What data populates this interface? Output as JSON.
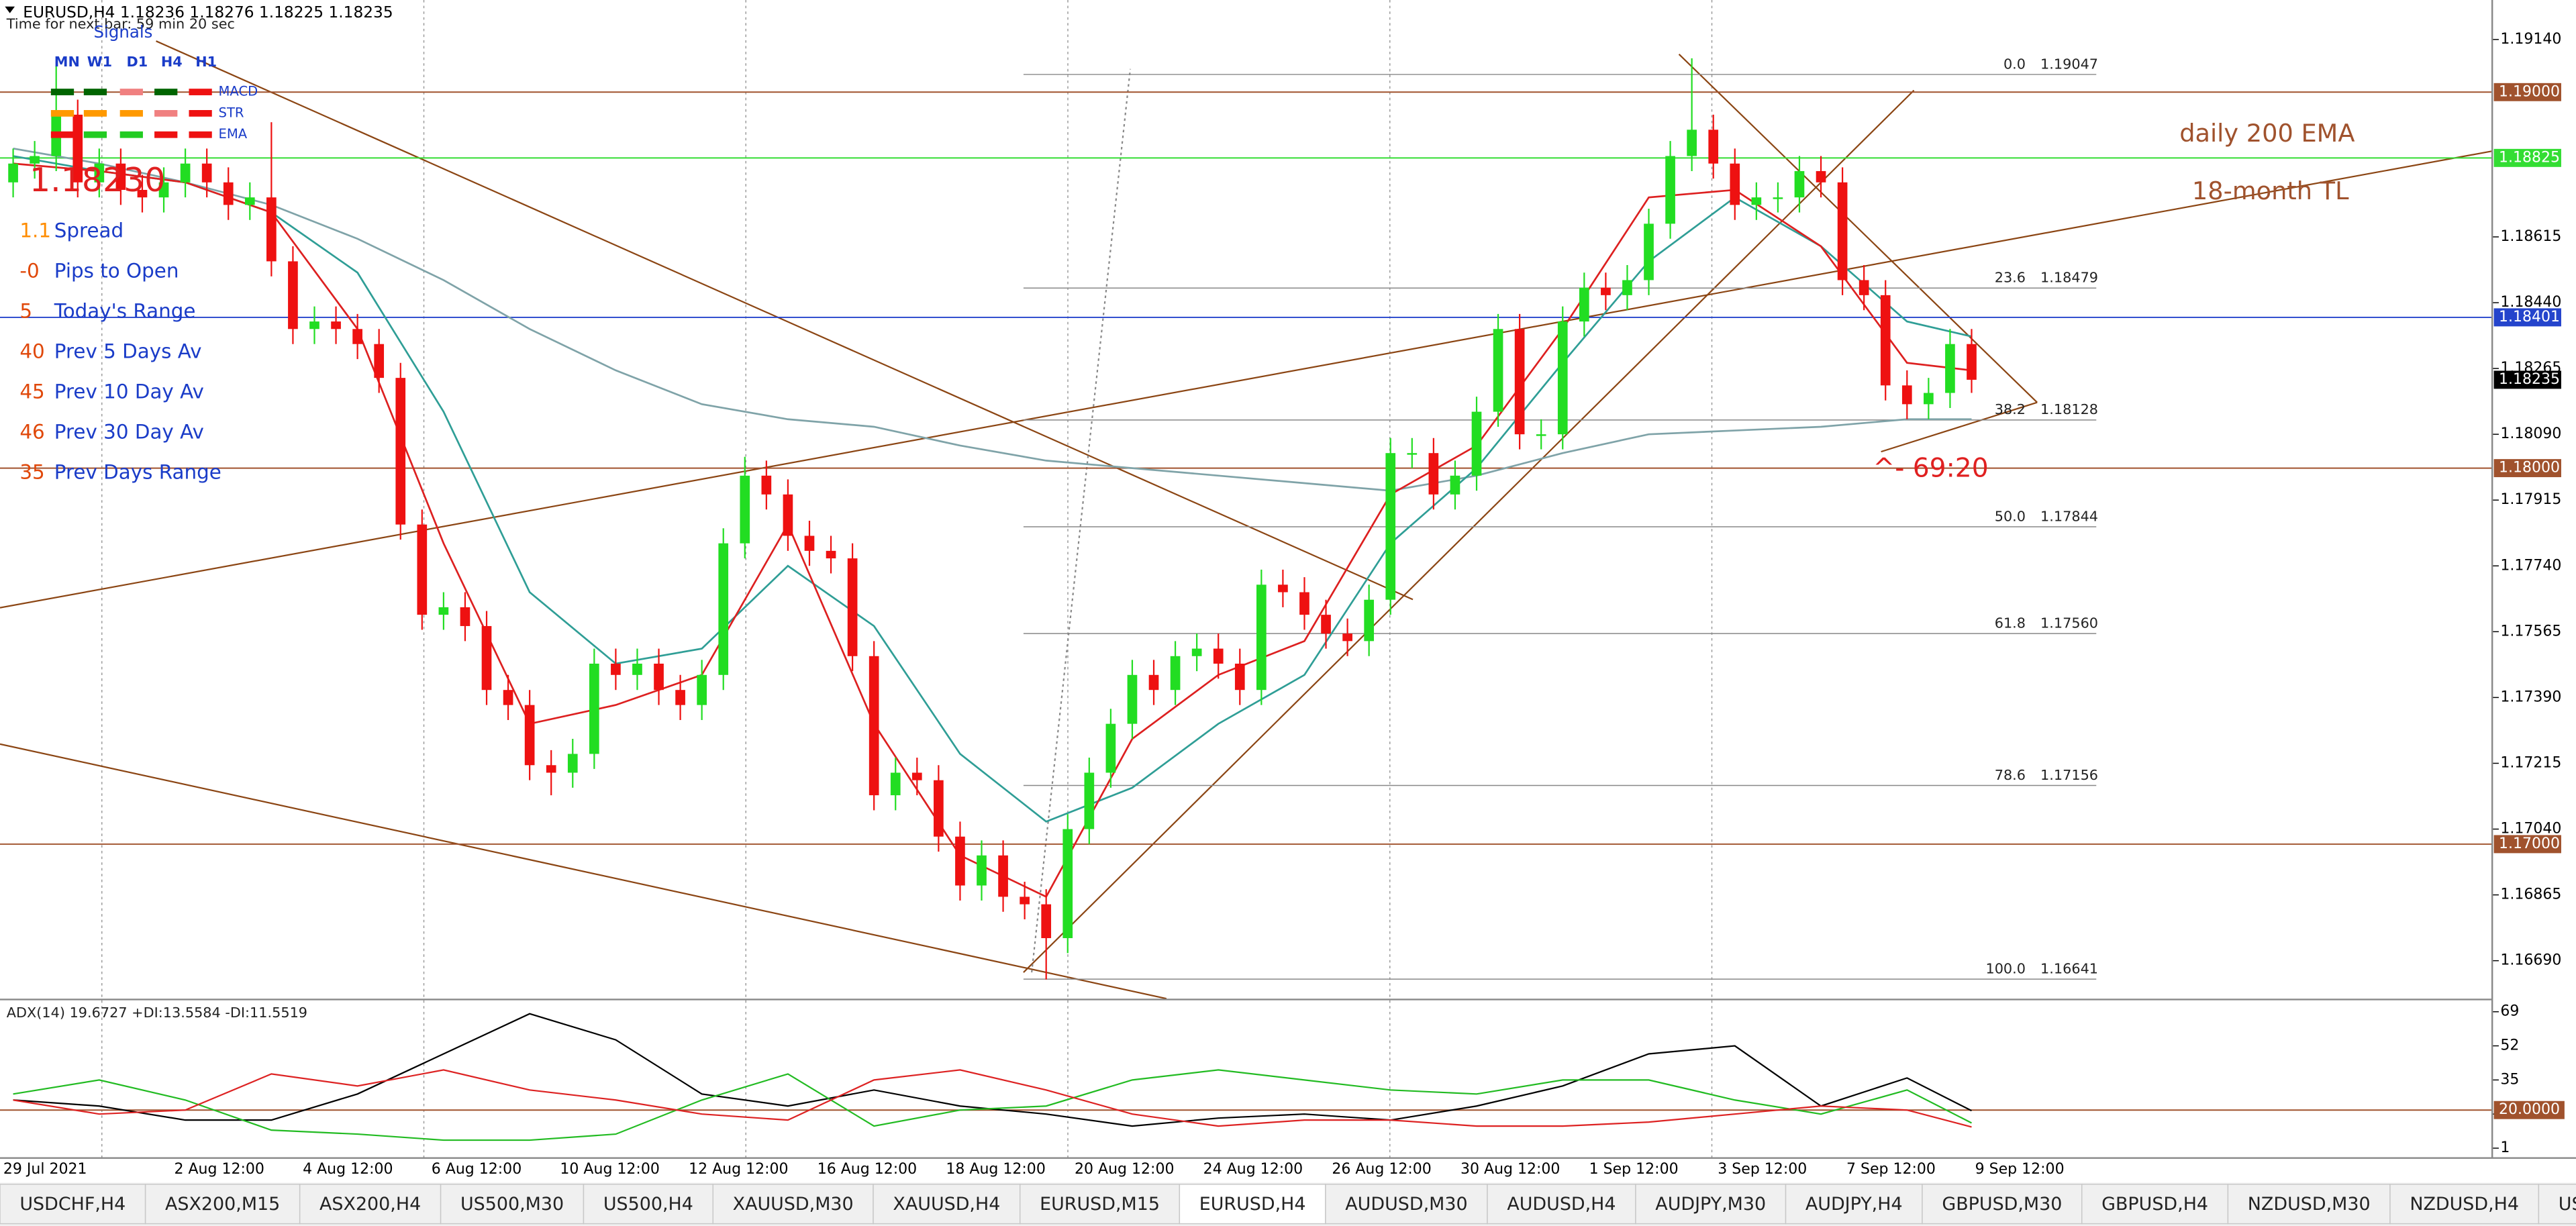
{
  "header": {
    "symbol_line": "EURUSD,H4  1.18236 1.18276 1.18225 1.18235",
    "timer": "Time for next bar: 59 min 20 sec"
  },
  "signals": {
    "title": "Signals",
    "timeframes": [
      "MN",
      "W1",
      "D1",
      "H4",
      "H1"
    ],
    "rows": [
      "MACD",
      "STR",
      "EMA"
    ]
  },
  "info_panel": {
    "price": "1.18230",
    "rows": [
      {
        "value": "1.1",
        "label": "Spread"
      },
      {
        "value": "-0",
        "label": "Pips to Open"
      },
      {
        "value": "5",
        "label": "Today's Range"
      },
      {
        "value": "40",
        "label": "Prev 5 Days Av"
      },
      {
        "value": "45",
        "label": "Prev 10 Day Av"
      },
      {
        "value": "46",
        "label": "Prev 30 Day Av"
      },
      {
        "value": "35",
        "label": "Prev Days Range"
      }
    ]
  },
  "chart_data": [
    {
      "type": "candlestick",
      "title": "EURUSD,H4",
      "up_color": "#22dd22",
      "down_color": "#ee1111",
      "open": [
        1.1876,
        1.1881,
        1.1883,
        1.1894,
        1.1876,
        1.1881,
        1.1874,
        1.1872,
        1.1876,
        1.1881,
        1.1876,
        1.187,
        1.1872,
        1.1855,
        1.1837,
        1.1839,
        1.1837,
        1.1833,
        1.1824,
        1.1785,
        1.1761,
        1.1763,
        1.1758,
        1.1741,
        1.1737,
        1.1721,
        1.1719,
        1.1724,
        1.1748,
        1.1745,
        1.1748,
        1.1741,
        1.1737,
        1.1745,
        1.178,
        1.1798,
        1.1793,
        1.1782,
        1.1778,
        1.1776,
        1.175,
        1.1713,
        1.1719,
        1.1717,
        1.1702,
        1.1689,
        1.1697,
        1.1686,
        1.1684,
        1.1675,
        1.1704,
        1.1719,
        1.1732,
        1.1745,
        1.1741,
        1.175,
        1.1752,
        1.1748,
        1.1741,
        1.1769,
        1.1767,
        1.1761,
        1.1756,
        1.1754,
        1.1765,
        1.1804,
        1.1804,
        1.1793,
        1.1798,
        1.1815,
        1.1837,
        1.1809,
        1.1809,
        1.1839,
        1.1848,
        1.1846,
        1.185,
        1.1865,
        1.1883,
        1.189,
        1.1881,
        1.187,
        1.1872,
        1.1872,
        1.1879,
        1.1876,
        1.185,
        1.1846,
        1.1822,
        1.1817,
        1.182,
        1.1833
      ],
      "high": [
        1.1885,
        1.1887,
        1.1907,
        1.1898,
        1.1885,
        1.1885,
        1.1878,
        1.188,
        1.1885,
        1.1885,
        1.188,
        1.1876,
        1.1892,
        1.1859,
        1.1843,
        1.1843,
        1.1841,
        1.1837,
        1.1828,
        1.1789,
        1.1767,
        1.1767,
        1.1762,
        1.1745,
        1.1741,
        1.1725,
        1.1728,
        1.1752,
        1.1752,
        1.1752,
        1.1752,
        1.1745,
        1.1749,
        1.1784,
        1.1803,
        1.1802,
        1.1797,
        1.1786,
        1.1782,
        1.178,
        1.1754,
        1.1723,
        1.1723,
        1.1721,
        1.1706,
        1.1701,
        1.1701,
        1.169,
        1.1688,
        1.1708,
        1.1723,
        1.1736,
        1.1749,
        1.1749,
        1.1754,
        1.1756,
        1.1756,
        1.1752,
        1.1773,
        1.1773,
        1.1771,
        1.1765,
        1.176,
        1.1769,
        1.1808,
        1.1808,
        1.1808,
        1.1802,
        1.1819,
        1.1841,
        1.1841,
        1.1813,
        1.1843,
        1.1852,
        1.1852,
        1.1854,
        1.1869,
        1.1887,
        1.1909,
        1.1894,
        1.1885,
        1.1876,
        1.1876,
        1.1883,
        1.1883,
        1.188,
        1.1854,
        1.185,
        1.1826,
        1.1824,
        1.1837,
        1.1837
      ],
      "low": [
        1.1872,
        1.1877,
        1.1879,
        1.1872,
        1.1872,
        1.187,
        1.1868,
        1.1868,
        1.1872,
        1.1872,
        1.1866,
        1.1866,
        1.1851,
        1.1833,
        1.1833,
        1.1833,
        1.1829,
        1.182,
        1.1781,
        1.1757,
        1.1757,
        1.1754,
        1.1737,
        1.1733,
        1.1717,
        1.1713,
        1.1715,
        1.172,
        1.1741,
        1.1741,
        1.1737,
        1.1733,
        1.1733,
        1.1741,
        1.1776,
        1.1789,
        1.1778,
        1.1774,
        1.1772,
        1.1746,
        1.1709,
        1.1709,
        1.1713,
        1.1698,
        1.1685,
        1.1685,
        1.1682,
        1.168,
        1.1664,
        1.1671,
        1.17,
        1.1715,
        1.1728,
        1.1737,
        1.1737,
        1.1746,
        1.1744,
        1.1737,
        1.1737,
        1.1763,
        1.1757,
        1.1752,
        1.175,
        1.175,
        1.1761,
        1.18,
        1.1789,
        1.1789,
        1.1794,
        1.1811,
        1.1805,
        1.1805,
        1.1805,
        1.1835,
        1.1842,
        1.1842,
        1.1846,
        1.1861,
        1.1879,
        1.1877,
        1.1866,
        1.1866,
        1.1868,
        1.1868,
        1.1872,
        1.1846,
        1.1842,
        1.1818,
        1.1813,
        1.1813,
        1.1816,
        1.182
      ],
      "close": [
        1.1881,
        1.1883,
        1.1894,
        1.1876,
        1.1881,
        1.1874,
        1.1872,
        1.1876,
        1.1881,
        1.1876,
        1.187,
        1.1872,
        1.1855,
        1.1837,
        1.1839,
        1.1837,
        1.1833,
        1.1824,
        1.1785,
        1.1761,
        1.1763,
        1.1758,
        1.1741,
        1.1737,
        1.1721,
        1.1719,
        1.1724,
        1.1748,
        1.1745,
        1.1748,
        1.1741,
        1.1737,
        1.1745,
        1.178,
        1.1798,
        1.1793,
        1.1782,
        1.1778,
        1.1776,
        1.175,
        1.1713,
        1.1719,
        1.1717,
        1.1702,
        1.1689,
        1.1697,
        1.1686,
        1.1684,
        1.1675,
        1.1704,
        1.1719,
        1.1732,
        1.1745,
        1.1741,
        1.175,
        1.1752,
        1.1748,
        1.1741,
        1.1769,
        1.1767,
        1.1761,
        1.1756,
        1.1754,
        1.1765,
        1.1804,
        1.1804,
        1.1793,
        1.1798,
        1.1815,
        1.1837,
        1.1809,
        1.1809,
        1.1839,
        1.1848,
        1.1846,
        1.185,
        1.1865,
        1.1883,
        1.189,
        1.1881,
        1.187,
        1.1872,
        1.1872,
        1.1879,
        1.1876,
        1.185,
        1.1846,
        1.1822,
        1.1817,
        1.182,
        1.1833,
        1.18235
      ],
      "ma_lines": [
        {
          "color": "#7fa3a8",
          "x": [
            0,
            4,
            8,
            12,
            16,
            20,
            24,
            28,
            32,
            36,
            40,
            44,
            48,
            52,
            56,
            60,
            64,
            68,
            72,
            76,
            80,
            84,
            88,
            91
          ],
          "values": [
            1.1885,
            1.1881,
            1.1876,
            1.187,
            1.1861,
            1.185,
            1.1837,
            1.1826,
            1.1817,
            1.1813,
            1.1811,
            1.1806,
            1.1802,
            1.18,
            1.1798,
            1.1796,
            1.1794,
            1.1798,
            1.1804,
            1.1809,
            1.181,
            1.1811,
            1.1813,
            1.1813
          ]
        },
        {
          "color": "#2f9e96",
          "x": [
            0,
            4,
            8,
            12,
            16,
            20,
            24,
            28,
            32,
            36,
            40,
            44,
            48,
            52,
            56,
            60,
            64,
            68,
            72,
            76,
            80,
            84,
            88,
            91
          ],
          "values": [
            1.1883,
            1.1879,
            1.1876,
            1.1868,
            1.1852,
            1.1815,
            1.1767,
            1.1748,
            1.1752,
            1.1774,
            1.1758,
            1.1724,
            1.1706,
            1.1715,
            1.1732,
            1.1745,
            1.178,
            1.18,
            1.1828,
            1.1855,
            1.1872,
            1.1859,
            1.1839,
            1.1835
          ]
        },
        {
          "color": "#dd2020",
          "x": [
            0,
            4,
            8,
            12,
            16,
            20,
            24,
            28,
            32,
            36,
            40,
            44,
            48,
            52,
            56,
            60,
            64,
            68,
            72,
            76,
            80,
            84,
            88,
            91
          ],
          "values": [
            1.1881,
            1.1879,
            1.1876,
            1.1868,
            1.1837,
            1.178,
            1.1732,
            1.1737,
            1.1745,
            1.1785,
            1.1732,
            1.1697,
            1.1686,
            1.1728,
            1.1745,
            1.1754,
            1.1793,
            1.1806,
            1.1837,
            1.1872,
            1.1874,
            1.1859,
            1.1828,
            1.1826
          ]
        }
      ],
      "ylim": [
        1.16589,
        1.19245
      ],
      "yticks": [
        {
          "value": 1.1914,
          "label": "1.19140"
        },
        {
          "value": 1.18615,
          "label": "1.18615"
        },
        {
          "value": 1.1844,
          "label": "1.18440"
        },
        {
          "value": 1.18265,
          "label": "1.18265"
        },
        {
          "value": 1.1809,
          "label": "1.18090"
        },
        {
          "value": 1.17915,
          "label": "1.17915"
        },
        {
          "value": 1.1774,
          "label": "1.17740"
        },
        {
          "value": 1.17565,
          "label": "1.17565"
        },
        {
          "value": 1.1739,
          "label": "1.17390"
        },
        {
          "value": 1.17215,
          "label": "1.17215"
        },
        {
          "value": 1.1704,
          "label": "1.17040"
        },
        {
          "value": 1.16865,
          "label": "1.16865"
        },
        {
          "value": 1.1669,
          "label": "1.16690"
        }
      ],
      "price_lines": [
        {
          "value": 1.19,
          "label": "1.19000",
          "color": "#a0522d",
          "show_line": true
        },
        {
          "value": 1.18825,
          "label": "1.18825",
          "color": "#33dd33",
          "show_line": true
        },
        {
          "value": 1.18401,
          "label": "1.18401",
          "color": "#2444cc",
          "show_line": true
        },
        {
          "value": 1.18235,
          "label": "1.18235",
          "color": "#000000",
          "show_line": false
        },
        {
          "value": 1.18,
          "label": "1.18000",
          "color": "#a0522d",
          "show_line": true
        },
        {
          "value": 1.17,
          "label": "1.17000",
          "color": "#a0522d",
          "show_line": true
        }
      ],
      "fib_color": "#888888",
      "fib_levels": [
        {
          "level": "0.0",
          "price": 1.19047
        },
        {
          "level": "23.6",
          "price": 1.18479
        },
        {
          "level": "38.2",
          "price": 1.18128
        },
        {
          "level": "50.0",
          "price": 1.17844
        },
        {
          "level": "61.8",
          "price": {
            "value": 1.1756,
            "label": "1.17560"
          }
        },
        {
          "level": "78.6",
          "price": 1.17156
        },
        {
          "level": "100.0",
          "price": 1.16641
        }
      ],
      "annotations": [
        "daily 200 EMA",
        "18-month TL",
        "^- 69:20"
      ],
      "x_labels": [
        "29 Jul 2021",
        "2 Aug 12:00",
        "4 Aug 12:00",
        "6 Aug 12:00",
        "10 Aug 12:00",
        "12 Aug 12:00",
        "16 Aug 12:00",
        "18 Aug 12:00",
        "20 Aug 12:00",
        "24 Aug 12:00",
        "26 Aug 12:00",
        "30 Aug 12:00",
        "1 Sep 12:00",
        "3 Sep 12:00",
        "7 Sep 12:00",
        "9 Sep 12:00"
      ]
    },
    {
      "type": "line",
      "title": "ADX(14) 19.6727 +DI:13.5584 -DI:11.5519",
      "x": [
        0,
        4,
        8,
        12,
        16,
        20,
        24,
        28,
        32,
        36,
        40,
        44,
        48,
        52,
        56,
        60,
        64,
        68,
        72,
        76,
        80,
        84,
        88,
        91
      ],
      "series": [
        {
          "color": "#000000",
          "values": [
            25,
            22,
            15,
            15,
            28,
            48,
            68,
            55,
            28,
            22,
            30,
            22,
            18,
            12,
            16,
            18,
            15,
            22,
            32,
            48,
            52,
            22,
            36,
            19.6727
          ]
        },
        {
          "color": "#22bb22",
          "values": [
            28,
            35,
            25,
            10,
            8,
            5,
            5,
            8,
            25,
            38,
            12,
            20,
            22,
            35,
            40,
            35,
            30,
            28,
            35,
            35,
            25,
            18,
            30,
            13.5584
          ]
        },
        {
          "color": "#dd2222",
          "values": [
            25,
            18,
            20,
            38,
            32,
            40,
            30,
            25,
            18,
            15,
            35,
            40,
            30,
            18,
            12,
            15,
            15,
            12,
            12,
            14,
            18,
            22,
            20,
            11.5519
          ]
        }
      ],
      "ylim": [
        -3.9,
        74.7
      ],
      "yticks": [
        1,
        18,
        35,
        52,
        69
      ],
      "level": {
        "value": 20,
        "label": "20.0000",
        "color": "#a0522d"
      }
    }
  ],
  "tabs": {
    "items": [
      "USDCHF,H4",
      "ASX200,M15",
      "ASX200,H4",
      "US500,M30",
      "US500,H4",
      "XAUUSD,M30",
      "XAUUSD,H4",
      "EURUSD,M15",
      "EURUSD,H4",
      "AUDUSD,M30",
      "AUDUSD,H4",
      "AUDJPY,M30",
      "AUDJPY,H4",
      "GBPUSD,M30",
      "GBPUSD,H4",
      "NZDUSD,M30",
      "NZDUSD,H4",
      "USI"
    ],
    "active": 8
  }
}
